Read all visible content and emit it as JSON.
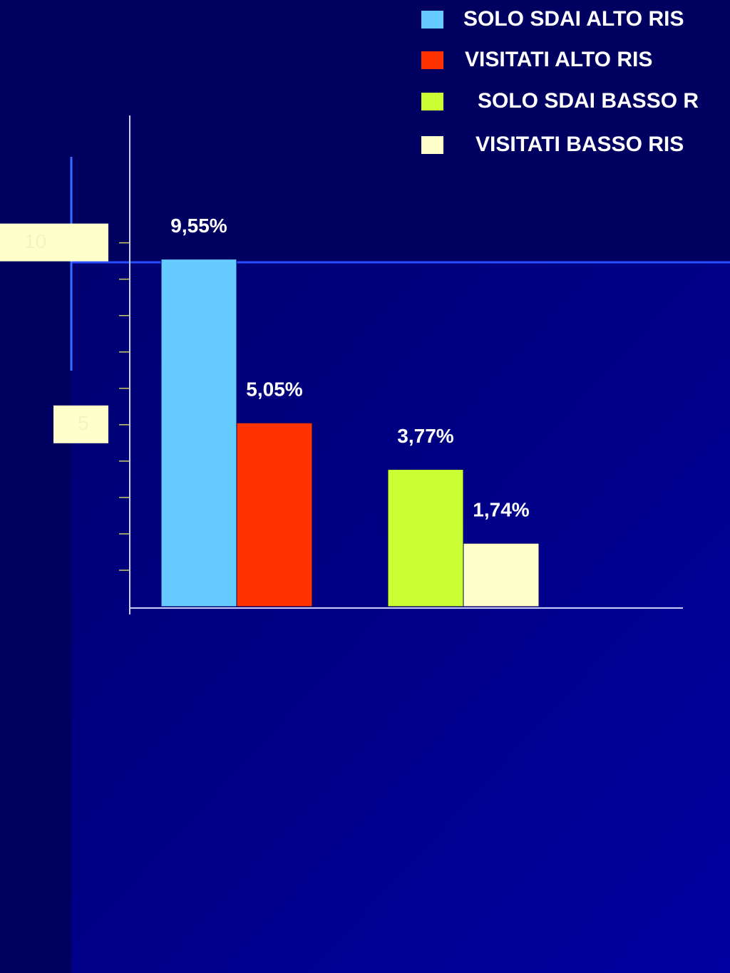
{
  "chart_data": {
    "type": "bar",
    "categories": [
      null,
      null
    ],
    "series": [
      {
        "name": "SOLO SDAI ALTO RIS",
        "color": "#66ccff",
        "values": [
          9.55,
          null
        ],
        "value_labels": [
          "9,55%",
          null
        ]
      },
      {
        "name": "VISITATI ALTO RIS",
        "color": "#ff3300",
        "values": [
          5.05,
          null
        ],
        "value_labels": [
          "5,05%",
          null
        ]
      },
      {
        "name": "SOLO SDAI BASSO R",
        "color": "#ccff33",
        "values": [
          null,
          3.77
        ],
        "value_labels": [
          null,
          "3,77%"
        ]
      },
      {
        "name": "VISITATI BASSO RIS",
        "color": "#ffffcc",
        "values": [
          null,
          1.74
        ],
        "value_labels": [
          null,
          "1,74%"
        ]
      }
    ],
    "ylim": [
      0,
      13.5
    ],
    "yticks": [
      5,
      10
    ],
    "minor_yticks": [
      1,
      2,
      3,
      4,
      5,
      6,
      7,
      8,
      9,
      10
    ]
  }
}
